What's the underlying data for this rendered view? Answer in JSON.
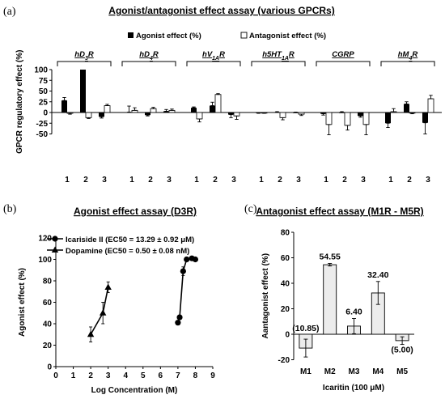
{
  "panels": {
    "a": {
      "label": "(a)"
    },
    "b": {
      "label": "(b)"
    },
    "c": {
      "label": "(c)"
    }
  },
  "chart_data": [
    {
      "type": "bar",
      "title": "Agonist/antagonist effect assay (various GPCRs)",
      "ylabel": "GPCR regulatory effect (%)",
      "ylim": [
        -50,
        100
      ],
      "yticks": [
        -50,
        -25,
        0,
        25,
        50,
        75,
        100
      ],
      "legend": [
        "Agonist effect (%)",
        "Antagonist effect (%)"
      ],
      "legend_position": "top",
      "groups": [
        {
          "receptor": "hD3R",
          "xticks": [
            "1",
            "2",
            "3"
          ],
          "agonist": [
            28,
            100,
            -10
          ],
          "agonist_err": [
            7,
            0,
            3
          ],
          "antagonist": [
            -2,
            -12,
            16
          ],
          "antagonist_err": [
            2,
            2,
            3
          ]
        },
        {
          "receptor": "hD4R",
          "xticks": [
            "1",
            "2",
            "3"
          ],
          "agonist": [
            1,
            -6,
            3
          ],
          "agonist_err": [
            14,
            2,
            4
          ],
          "antagonist": [
            5,
            9,
            5
          ],
          "antagonist_err": [
            6,
            3,
            3
          ]
        },
        {
          "receptor": "hV1AR",
          "xticks": [
            "1",
            "2",
            "3"
          ],
          "agonist": [
            11,
            16,
            -5
          ],
          "agonist_err": [
            2,
            8,
            7
          ],
          "antagonist": [
            -15,
            42,
            -8
          ],
          "antagonist_err": [
            7,
            2,
            8
          ]
        },
        {
          "receptor": "h5HT1AR",
          "xticks": [
            "1",
            "2",
            "3"
          ],
          "agonist": [
            -1,
            1,
            0
          ],
          "agonist_err": [
            1,
            1,
            1
          ],
          "antagonist": [
            -1,
            -12,
            -4
          ],
          "antagonist_err": [
            1,
            5,
            3
          ]
        },
        {
          "receptor": "CGRP",
          "xticks": [
            "1",
            "2",
            "3"
          ],
          "agonist": [
            -3,
            0,
            -8
          ],
          "agonist_err": [
            3,
            2,
            3
          ],
          "antagonist": [
            -28,
            -30,
            -28
          ],
          "antagonist_err": [
            24,
            11,
            24
          ]
        },
        {
          "receptor": "hM4R",
          "xticks": [
            "1",
            "2",
            "3"
          ],
          "agonist": [
            -25,
            20,
            -24
          ],
          "agonist_err": [
            10,
            5,
            26
          ],
          "antagonist": [
            2,
            -1,
            32
          ],
          "antagonist_err": [
            7,
            2,
            8
          ]
        }
      ]
    },
    {
      "type": "scatter",
      "title": "Agonist effect assay (D3R)",
      "xlabel": "Log Concentration (M)",
      "ylabel": "Agonist effect (%)",
      "xlim": [
        0,
        9
      ],
      "ylim": [
        0,
        120
      ],
      "xticks": [
        0,
        1,
        2,
        3,
        4,
        5,
        6,
        7,
        8,
        9
      ],
      "yticks": [
        0,
        20,
        40,
        60,
        80,
        100,
        120
      ],
      "legend_position": "top-left",
      "series": [
        {
          "name": "Icariside II (EC50 = 13.29 ± 0.92 μM)",
          "marker": "circle",
          "x": [
            7.0,
            7.1,
            7.3,
            7.5,
            7.8,
            8.0
          ],
          "y": [
            41,
            46,
            89,
            100,
            101,
            100
          ],
          "err": [
            2,
            2,
            4,
            2,
            1,
            1
          ]
        },
        {
          "name": "Dopamine (EC50 = 0.50 ± 0.08 nM)",
          "marker": "triangle",
          "x": [
            2.0,
            2.7,
            3.0
          ],
          "y": [
            30,
            50,
            74
          ],
          "err": [
            7,
            10,
            5
          ]
        }
      ]
    },
    {
      "type": "bar",
      "title": "Antagonist effect assay (M1R - M5R)",
      "xlabel": "Icaritin (100 μM)",
      "ylabel": "Aantagonist effect (%)",
      "ylim": [
        -20,
        80
      ],
      "yticks": [
        -20,
        0,
        20,
        40,
        60,
        80
      ],
      "categories": [
        "M1",
        "M2",
        "M3",
        "M4",
        "M5"
      ],
      "values": [
        -10.85,
        54.55,
        6.4,
        32.4,
        -5.0
      ],
      "errors": [
        7,
        1,
        6,
        9,
        3
      ],
      "data_labels": [
        "(10.85)",
        "54.55",
        "6.40",
        "32.40",
        "(5.00)"
      ]
    }
  ]
}
